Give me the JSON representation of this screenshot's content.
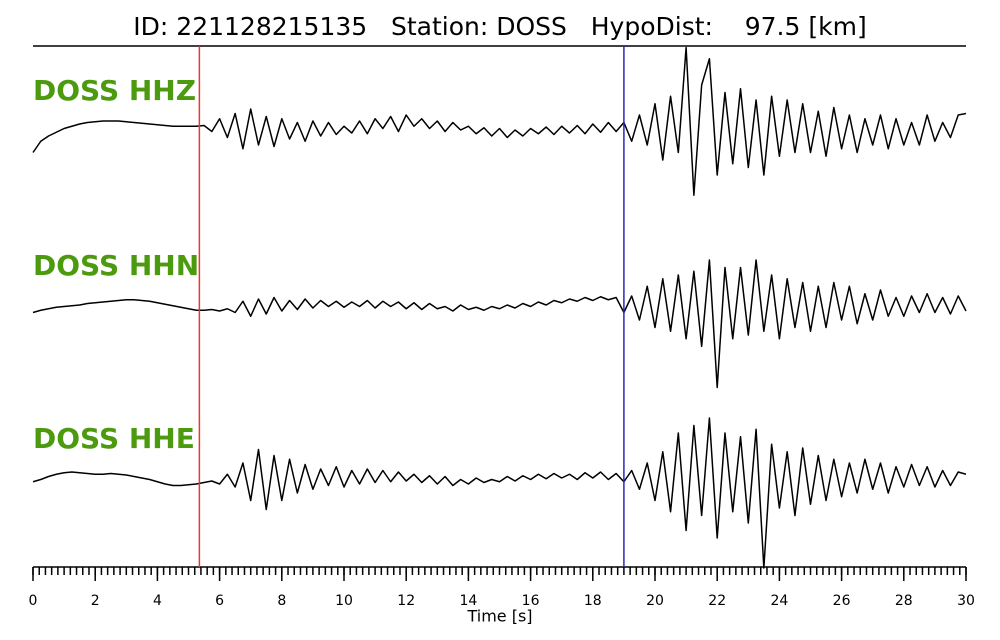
{
  "chart_data": {
    "type": "line",
    "title": "ID: 221128215135   Station: DOSS   HypoDist:    97.5 [km]",
    "xlabel": "Time [s]",
    "xlim": [
      0,
      30
    ],
    "xticks": [
      0,
      2,
      4,
      6,
      8,
      10,
      12,
      14,
      16,
      18,
      20,
      22,
      24,
      26,
      28,
      30
    ],
    "xminor_step": 0.2,
    "label_color": "#4c9a0e",
    "vlines": [
      {
        "value": 5.35,
        "color": "#e8382f"
      },
      {
        "value": 19.0,
        "color": "#2828b8"
      }
    ],
    "x": [
      0,
      0.25,
      0.5,
      0.75,
      1,
      1.25,
      1.5,
      1.75,
      2,
      2.25,
      2.5,
      2.75,
      3,
      3.25,
      3.5,
      3.75,
      4,
      4.25,
      4.5,
      4.75,
      5,
      5.25,
      5.5,
      5.75,
      6,
      6.25,
      6.5,
      6.75,
      7,
      7.25,
      7.5,
      7.75,
      8,
      8.25,
      8.5,
      8.75,
      9,
      9.25,
      9.5,
      9.75,
      10,
      10.25,
      10.5,
      10.75,
      11,
      11.25,
      11.5,
      11.75,
      12,
      12.25,
      12.5,
      12.75,
      13,
      13.25,
      13.5,
      13.75,
      14,
      14.25,
      14.5,
      14.75,
      15,
      15.25,
      15.5,
      15.75,
      16,
      16.25,
      16.5,
      16.75,
      17,
      17.25,
      17.5,
      17.75,
      18,
      18.25,
      18.5,
      18.75,
      19,
      19.25,
      19.5,
      19.75,
      20,
      20.25,
      20.5,
      20.75,
      21,
      21.25,
      21.5,
      21.75,
      22,
      22.25,
      22.5,
      22.75,
      23,
      23.25,
      23.5,
      23.75,
      24,
      24.25,
      24.5,
      24.75,
      25,
      25.25,
      25.5,
      25.75,
      26,
      26.25,
      26.5,
      26.75,
      27,
      27.25,
      27.5,
      27.75,
      28,
      28.25,
      28.5,
      28.75,
      29,
      29.25,
      29.5,
      29.75,
      30
    ],
    "series": [
      {
        "name": "DOSS HHZ",
        "color": "#000000",
        "values": [
          -0.3,
          -0.15,
          -0.08,
          -0.03,
          0.02,
          0.05,
          0.08,
          0.1,
          0.11,
          0.12,
          0.12,
          0.12,
          0.11,
          0.1,
          0.09,
          0.08,
          0.07,
          0.06,
          0.05,
          0.05,
          0.05,
          0.05,
          0.06,
          -0.02,
          0.15,
          -0.1,
          0.22,
          -0.25,
          0.28,
          -0.2,
          0.18,
          -0.22,
          0.15,
          -0.12,
          0.1,
          -0.15,
          0.12,
          -0.08,
          0.1,
          -0.06,
          0.05,
          -0.04,
          0.12,
          -0.05,
          0.15,
          0.02,
          0.18,
          -0.02,
          0.2,
          0.05,
          0.15,
          0.02,
          0.12,
          -0.02,
          0.1,
          0.0,
          0.05,
          -0.05,
          0.03,
          -0.08,
          0.02,
          -0.1,
          0.0,
          -0.08,
          0.02,
          -0.05,
          0.04,
          -0.06,
          0.05,
          -0.04,
          0.06,
          -0.05,
          0.08,
          -0.03,
          0.1,
          -0.02,
          0.1,
          -0.15,
          0.2,
          -0.2,
          0.35,
          -0.4,
          0.45,
          -0.3,
          1.1,
          -0.87,
          0.6,
          0.95,
          -0.6,
          0.5,
          -0.45,
          0.55,
          -0.5,
          0.4,
          -0.6,
          0.45,
          -0.35,
          0.4,
          -0.3,
          0.35,
          -0.3,
          0.25,
          -0.35,
          0.3,
          -0.25,
          0.2,
          -0.3,
          0.15,
          -0.2,
          0.2,
          -0.25,
          0.15,
          -0.2,
          0.1,
          -0.2,
          0.2,
          -0.15,
          0.1,
          -0.1,
          0.2,
          0.22
        ]
      },
      {
        "name": "DOSS HHN",
        "color": "#000000",
        "values": [
          -0.1,
          -0.07,
          -0.05,
          -0.03,
          -0.02,
          -0.01,
          0,
          0.02,
          0.03,
          0.04,
          0.05,
          0.06,
          0.07,
          0.07,
          0.06,
          0.05,
          0.03,
          0.01,
          -0.01,
          -0.03,
          -0.05,
          -0.07,
          -0.07,
          -0.06,
          -0.08,
          -0.05,
          -0.1,
          0.05,
          -0.15,
          0.08,
          -0.12,
          0.1,
          -0.08,
          0.06,
          -0.06,
          0.08,
          -0.04,
          0.06,
          -0.02,
          0.05,
          -0.03,
          0.04,
          -0.02,
          0.06,
          -0.04,
          0.05,
          -0.02,
          0.04,
          -0.05,
          0.03,
          -0.06,
          0.02,
          -0.05,
          -0.02,
          -0.08,
          0.0,
          -0.06,
          -0.03,
          -0.07,
          -0.02,
          -0.05,
          0.0,
          -0.04,
          0.02,
          -0.02,
          0.04,
          0.0,
          0.06,
          0.03,
          0.08,
          0.05,
          0.1,
          0.06,
          0.11,
          0.07,
          0.1,
          -0.1,
          0.12,
          -0.2,
          0.25,
          -0.3,
          0.35,
          -0.35,
          0.4,
          -0.45,
          0.45,
          -0.55,
          0.6,
          -1.1,
          0.5,
          -0.45,
          0.5,
          -0.4,
          0.6,
          -0.35,
          0.4,
          -0.45,
          0.35,
          -0.3,
          0.3,
          -0.35,
          0.25,
          -0.3,
          0.3,
          -0.2,
          0.25,
          -0.25,
          0.15,
          -0.2,
          0.2,
          -0.15,
          0.1,
          -0.15,
          0.12,
          -0.1,
          0.15,
          -0.1,
          0.1,
          -0.12,
          0.12,
          -0.08
        ]
      },
      {
        "name": "DOSS HHE",
        "color": "#000000",
        "values": [
          -0.05,
          -0.02,
          0.02,
          0.05,
          0.07,
          0.08,
          0.07,
          0.06,
          0.05,
          0.05,
          0.06,
          0.05,
          0.04,
          0.02,
          0.0,
          -0.02,
          -0.05,
          -0.08,
          -0.1,
          -0.1,
          -0.09,
          -0.08,
          -0.06,
          -0.04,
          -0.08,
          0.05,
          -0.12,
          0.2,
          -0.3,
          0.38,
          -0.42,
          0.3,
          -0.3,
          0.25,
          -0.2,
          0.18,
          -0.15,
          0.12,
          -0.1,
          0.15,
          -0.12,
          0.1,
          -0.08,
          0.12,
          -0.06,
          0.1,
          -0.05,
          0.08,
          -0.04,
          0.05,
          -0.06,
          0.03,
          -0.08,
          0.02,
          -0.1,
          -0.02,
          -0.08,
          0.0,
          -0.06,
          -0.02,
          -0.05,
          0.02,
          -0.04,
          0.03,
          -0.02,
          0.05,
          -0.01,
          0.06,
          0.0,
          0.05,
          -0.02,
          0.07,
          0.0,
          0.08,
          -0.02,
          0.06,
          -0.05,
          0.1,
          -0.15,
          0.2,
          -0.3,
          0.35,
          -0.45,
          0.6,
          -0.7,
          0.7,
          -0.5,
          0.8,
          -0.8,
          0.6,
          -0.45,
          0.55,
          -0.6,
          0.65,
          -1.2,
          0.45,
          -0.4,
          0.35,
          -0.5,
          0.4,
          -0.35,
          0.3,
          -0.3,
          0.25,
          -0.25,
          0.2,
          -0.2,
          0.25,
          -0.15,
          0.2,
          -0.2,
          0.15,
          -0.12,
          0.18,
          -0.1,
          0.15,
          -0.12,
          0.1,
          -0.1,
          0.08,
          0.05
        ]
      }
    ]
  }
}
